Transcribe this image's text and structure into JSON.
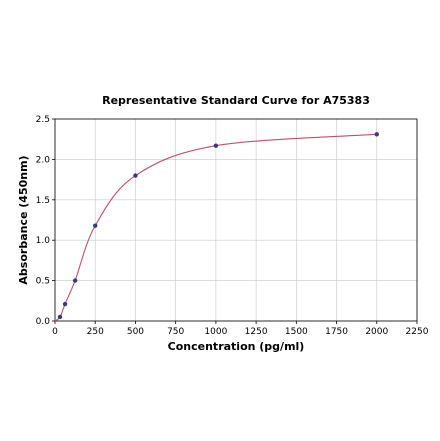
{
  "chart_data": {
    "type": "scatter",
    "title": "Representative Standard Curve for A75383",
    "xlabel": "Concentration (pg/ml)",
    "ylabel": "Absorbance (450nm)",
    "xlim": [
      0,
      2250
    ],
    "ylim": [
      0,
      2.5
    ],
    "x_ticks": [
      "0",
      "250",
      "500",
      "750",
      "1000",
      "1250",
      "1500",
      "1750",
      "2000",
      "2250"
    ],
    "y_ticks": [
      "0.0",
      "0.5",
      "1.0",
      "1.5",
      "2.0",
      "2.5"
    ],
    "grid": true,
    "series": [
      {
        "points": [
          {
            "x": 0,
            "y": 0.0
          },
          {
            "x": 31.25,
            "y": 0.05
          },
          {
            "x": 62.5,
            "y": 0.21
          },
          {
            "x": 125,
            "y": 0.5
          },
          {
            "x": 250,
            "y": 1.18
          },
          {
            "x": 500,
            "y": 1.8
          },
          {
            "x": 1000,
            "y": 2.17
          },
          {
            "x": 2000,
            "y": 2.31
          }
        ],
        "marker_color": "#3b3b7a",
        "curve_color": "#c0506a"
      }
    ]
  }
}
